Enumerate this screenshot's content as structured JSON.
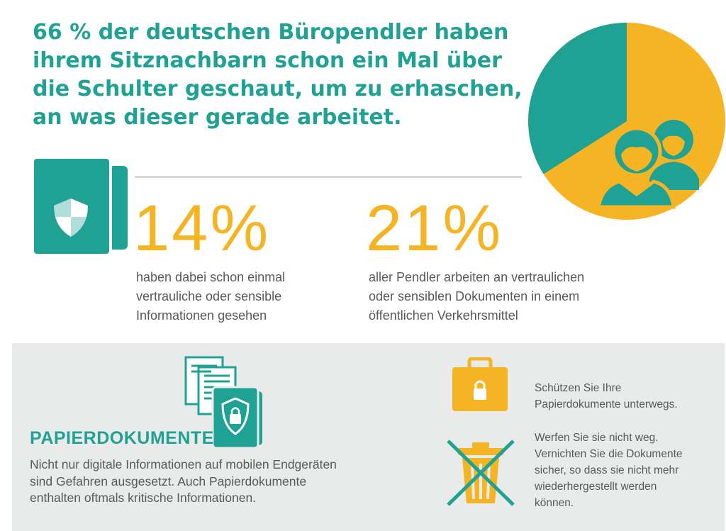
{
  "headline": {
    "lines": [
      "66 % der deutschen Büropendler haben",
      "ihrem Sitznachbarn schon ein Mal über",
      "die Schulter geschaut, um zu erhaschen,",
      "an was dieser gerade arbeitet."
    ]
  },
  "pie": {
    "percent": 66,
    "colors": {
      "main": "#f5b423",
      "rest": "#1fa194"
    },
    "icon": "people-icon"
  },
  "stats": [
    {
      "value": "14%",
      "lines": [
        "haben dabei schon einmal",
        "vertrauliche oder sensible",
        "Informationen gesehen"
      ]
    },
    {
      "value": "21%",
      "lines": [
        "aller Pendler arbeiten an vertraulichen",
        "oder sensiblen Dokumenten in einem",
        "öffentlichen Verkehrsmittel"
      ]
    }
  ],
  "paper": {
    "heading": "PAPIERDOKUMENTE",
    "lines": [
      "Nicht nur digitale Informationen auf mobilen Endgeräten",
      "sind Gefahren ausgesetzt. Auch Papierdokumente",
      "enthalten oftmals kritische Informationen."
    ]
  },
  "tips": [
    {
      "icon": "briefcase-lock-icon",
      "lines": [
        "Schützen Sie Ihre",
        "Papierdokumente unterwegs."
      ]
    },
    {
      "icon": "crossed-trash-icon",
      "lines": [
        "Werfen Sie sie nicht weg.",
        "Vernichten Sie die Dokumente",
        "sicher, so dass sie nicht mehr",
        "wiederhergestellt werden",
        "können."
      ]
    }
  ],
  "colors": {
    "teal": "#1fa194",
    "yellow": "#f5b423",
    "gray_text": "#555a5a",
    "panel": "#e9ebea"
  }
}
